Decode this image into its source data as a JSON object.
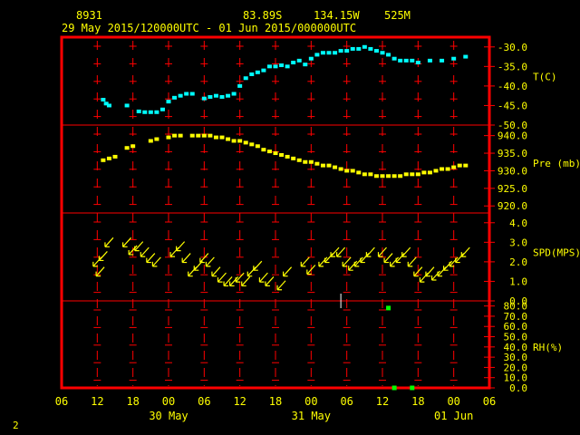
{
  "header": {
    "station_id": "8931",
    "latitude": "83.89S",
    "longitude": "134.15W",
    "elevation": "525M",
    "time_range": "29 May 2015/120000UTC - 01 Jun 2015/000000UTC"
  },
  "footer": {
    "page_number": "2"
  },
  "colors": {
    "frame": "#ff0000",
    "grid": "#ff0000",
    "text": "#ffff00",
    "temperature": "#00ffff",
    "pressure": "#ffff00",
    "wind": "#ffff00",
    "rh": "#00ff00"
  },
  "chart_data": [
    {
      "type": "scatter",
      "panel": "temperature",
      "ylabel": "T(C)",
      "ylim": [
        -50,
        -27.5
      ],
      "yticks": [
        "-30.0",
        "-35.0",
        "-40.0",
        "-45.0",
        "-50.0"
      ],
      "yticks_values": [
        -30,
        -35,
        -40,
        -45,
        -50
      ],
      "x": [
        13,
        13.5,
        14,
        17,
        19,
        20,
        21,
        22,
        23,
        24,
        25,
        26,
        27,
        28,
        30,
        31,
        32,
        33,
        34,
        35,
        36,
        37,
        38,
        39,
        40,
        41,
        42,
        43,
        44,
        45,
        46,
        47,
        48,
        49,
        50,
        51,
        52,
        53,
        54,
        55,
        56,
        57,
        58,
        59,
        60,
        61,
        62,
        63,
        64,
        65,
        66,
        68,
        70,
        72,
        74
      ],
      "values": [
        -43.5,
        -44.5,
        -45,
        -45,
        -46.5,
        -46.7,
        -46.7,
        -46.7,
        -46,
        -44,
        -43,
        -42.5,
        -42,
        -42,
        -43.2,
        -42.8,
        -42.5,
        -42.8,
        -42.5,
        -42,
        -40,
        -38,
        -37,
        -36.5,
        -36,
        -35,
        -35,
        -34.7,
        -35,
        -34,
        -33.5,
        -34.5,
        -33,
        -32,
        -31.5,
        -31.5,
        -31.5,
        -31,
        -31,
        -30.5,
        -30.5,
        -30,
        -30.5,
        -31,
        -31.5,
        -32,
        -33,
        -33.5,
        -33.5,
        -33.5,
        -34,
        -33.5,
        -33.5,
        -33,
        -32.5
      ]
    },
    {
      "type": "scatter",
      "panel": "pressure",
      "ylabel": "Pre (mb)",
      "ylim": [
        918,
        943
      ],
      "yticks": [
        "940.0",
        "935.0",
        "930.0",
        "925.0",
        "920.0"
      ],
      "yticks_values": [
        940,
        935,
        930,
        925,
        920
      ],
      "x": [
        13,
        14,
        15,
        17,
        18,
        21,
        22,
        24,
        25,
        26,
        28,
        29,
        30,
        31,
        32,
        33,
        34,
        35,
        36,
        37,
        38,
        39,
        40,
        41,
        42,
        43,
        44,
        45,
        46,
        47,
        48,
        49,
        50,
        51,
        52,
        53,
        54,
        55,
        56,
        57,
        58,
        59,
        60,
        61,
        62,
        63,
        64,
        65,
        66,
        67,
        68,
        69,
        70,
        71,
        72,
        73,
        74
      ],
      "values": [
        933,
        933.5,
        934,
        936.5,
        937,
        938.5,
        939,
        939.5,
        940,
        940,
        940,
        940,
        940,
        940,
        939.5,
        939.5,
        939,
        938.5,
        938.5,
        938,
        937.5,
        937,
        936,
        935.5,
        935,
        934.5,
        934,
        933.5,
        933,
        932.5,
        932.5,
        932,
        931.5,
        931.5,
        931,
        930.5,
        930,
        930,
        929.5,
        929,
        929,
        928.5,
        928.5,
        928.5,
        928.5,
        928.5,
        929,
        929,
        929,
        929.5,
        929.5,
        930,
        930.5,
        930.5,
        931,
        931.5,
        931.5
      ]
    },
    {
      "type": "scatter",
      "panel": "wind",
      "ylabel": "SPD(MPS)",
      "ylim": [
        0,
        4.5
      ],
      "yticks": [
        "4.0",
        "3.0",
        "2.0",
        "1.0",
        "0.0"
      ],
      "yticks_values": [
        4,
        3,
        2,
        1,
        0
      ],
      "x": [
        12,
        12.5,
        13,
        14,
        17,
        18,
        19,
        20,
        21,
        22,
        25,
        26,
        27,
        28,
        29,
        30,
        31,
        32,
        33,
        34,
        35,
        36,
        37,
        38,
        39,
        40,
        41,
        43,
        44,
        47,
        48,
        50,
        51,
        52,
        53,
        54,
        55,
        56,
        57,
        58,
        60,
        61,
        62,
        63,
        64,
        65,
        66,
        67,
        68,
        69,
        70,
        71,
        72,
        73,
        74
      ],
      "values": [
        2,
        1.5,
        2.3,
        3,
        3,
        2.6,
        2.8,
        2.5,
        2.2,
        2,
        2.5,
        2.8,
        2.2,
        1.5,
        1.8,
        2.2,
        2,
        1.5,
        1.2,
        1,
        1,
        1.2,
        1,
        1.5,
        1.8,
        1.2,
        1,
        0.8,
        1.5,
        2,
        1.6,
        2,
        2.2,
        2.5,
        2.5,
        2,
        1.8,
        2,
        2.2,
        2.5,
        2.5,
        2.2,
        2,
        2.2,
        2.5,
        2,
        1.5,
        1.2,
        1.5,
        1.3,
        1.5,
        1.8,
        2,
        2.2,
        2.5
      ]
    },
    {
      "type": "scatter",
      "panel": "rh",
      "ylabel": "RH(%)",
      "ylim": [
        0,
        85
      ],
      "yticks": [
        "80.0",
        "70.0",
        "60.0",
        "50.0",
        "40.0",
        "30.0",
        "20.0",
        "10.0",
        "0.0"
      ],
      "yticks_values": [
        80,
        70,
        60,
        50,
        40,
        30,
        20,
        10,
        0
      ],
      "x": [
        61,
        62,
        65
      ],
      "values": [
        78,
        0,
        0
      ]
    }
  ],
  "x_axis": {
    "ticks": [
      "06",
      "12",
      "18",
      "00",
      "06",
      "12",
      "18",
      "00",
      "06",
      "12",
      "18",
      "00",
      "06"
    ],
    "ticks_hours": [
      6,
      12,
      18,
      24,
      30,
      36,
      42,
      48,
      54,
      60,
      66,
      72,
      78
    ],
    "dates": [
      {
        "label": "30 May",
        "hour": 24
      },
      {
        "label": "31 May",
        "hour": 48
      },
      {
        "label": "01 Jun",
        "hour": 72
      }
    ]
  }
}
